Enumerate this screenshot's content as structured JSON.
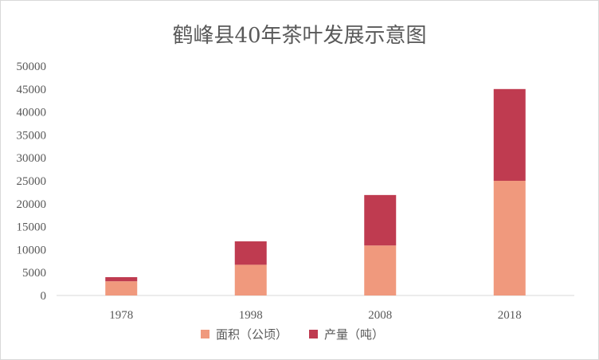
{
  "chart_data": {
    "type": "bar",
    "stacked": true,
    "title": "鹤峰县40年茶叶发展示意图",
    "categories": [
      "1978",
      "1998",
      "2008",
      "2018"
    ],
    "series": [
      {
        "name": "面积（公顷）",
        "color": "#f0997d",
        "values": [
          3100,
          6700,
          10900,
          25000
        ]
      },
      {
        "name": "产量（吨）",
        "color": "#bf3b50",
        "values": [
          900,
          5100,
          11000,
          20000
        ]
      }
    ],
    "ylim": [
      0,
      50000
    ],
    "yticks": [
      0,
      5000,
      10000,
      15000,
      20000,
      25000,
      30000,
      35000,
      40000,
      45000,
      50000
    ],
    "grid": false,
    "legend_position": "bottom",
    "axis_color": "#d9d9d9",
    "text_color": "#595959"
  }
}
